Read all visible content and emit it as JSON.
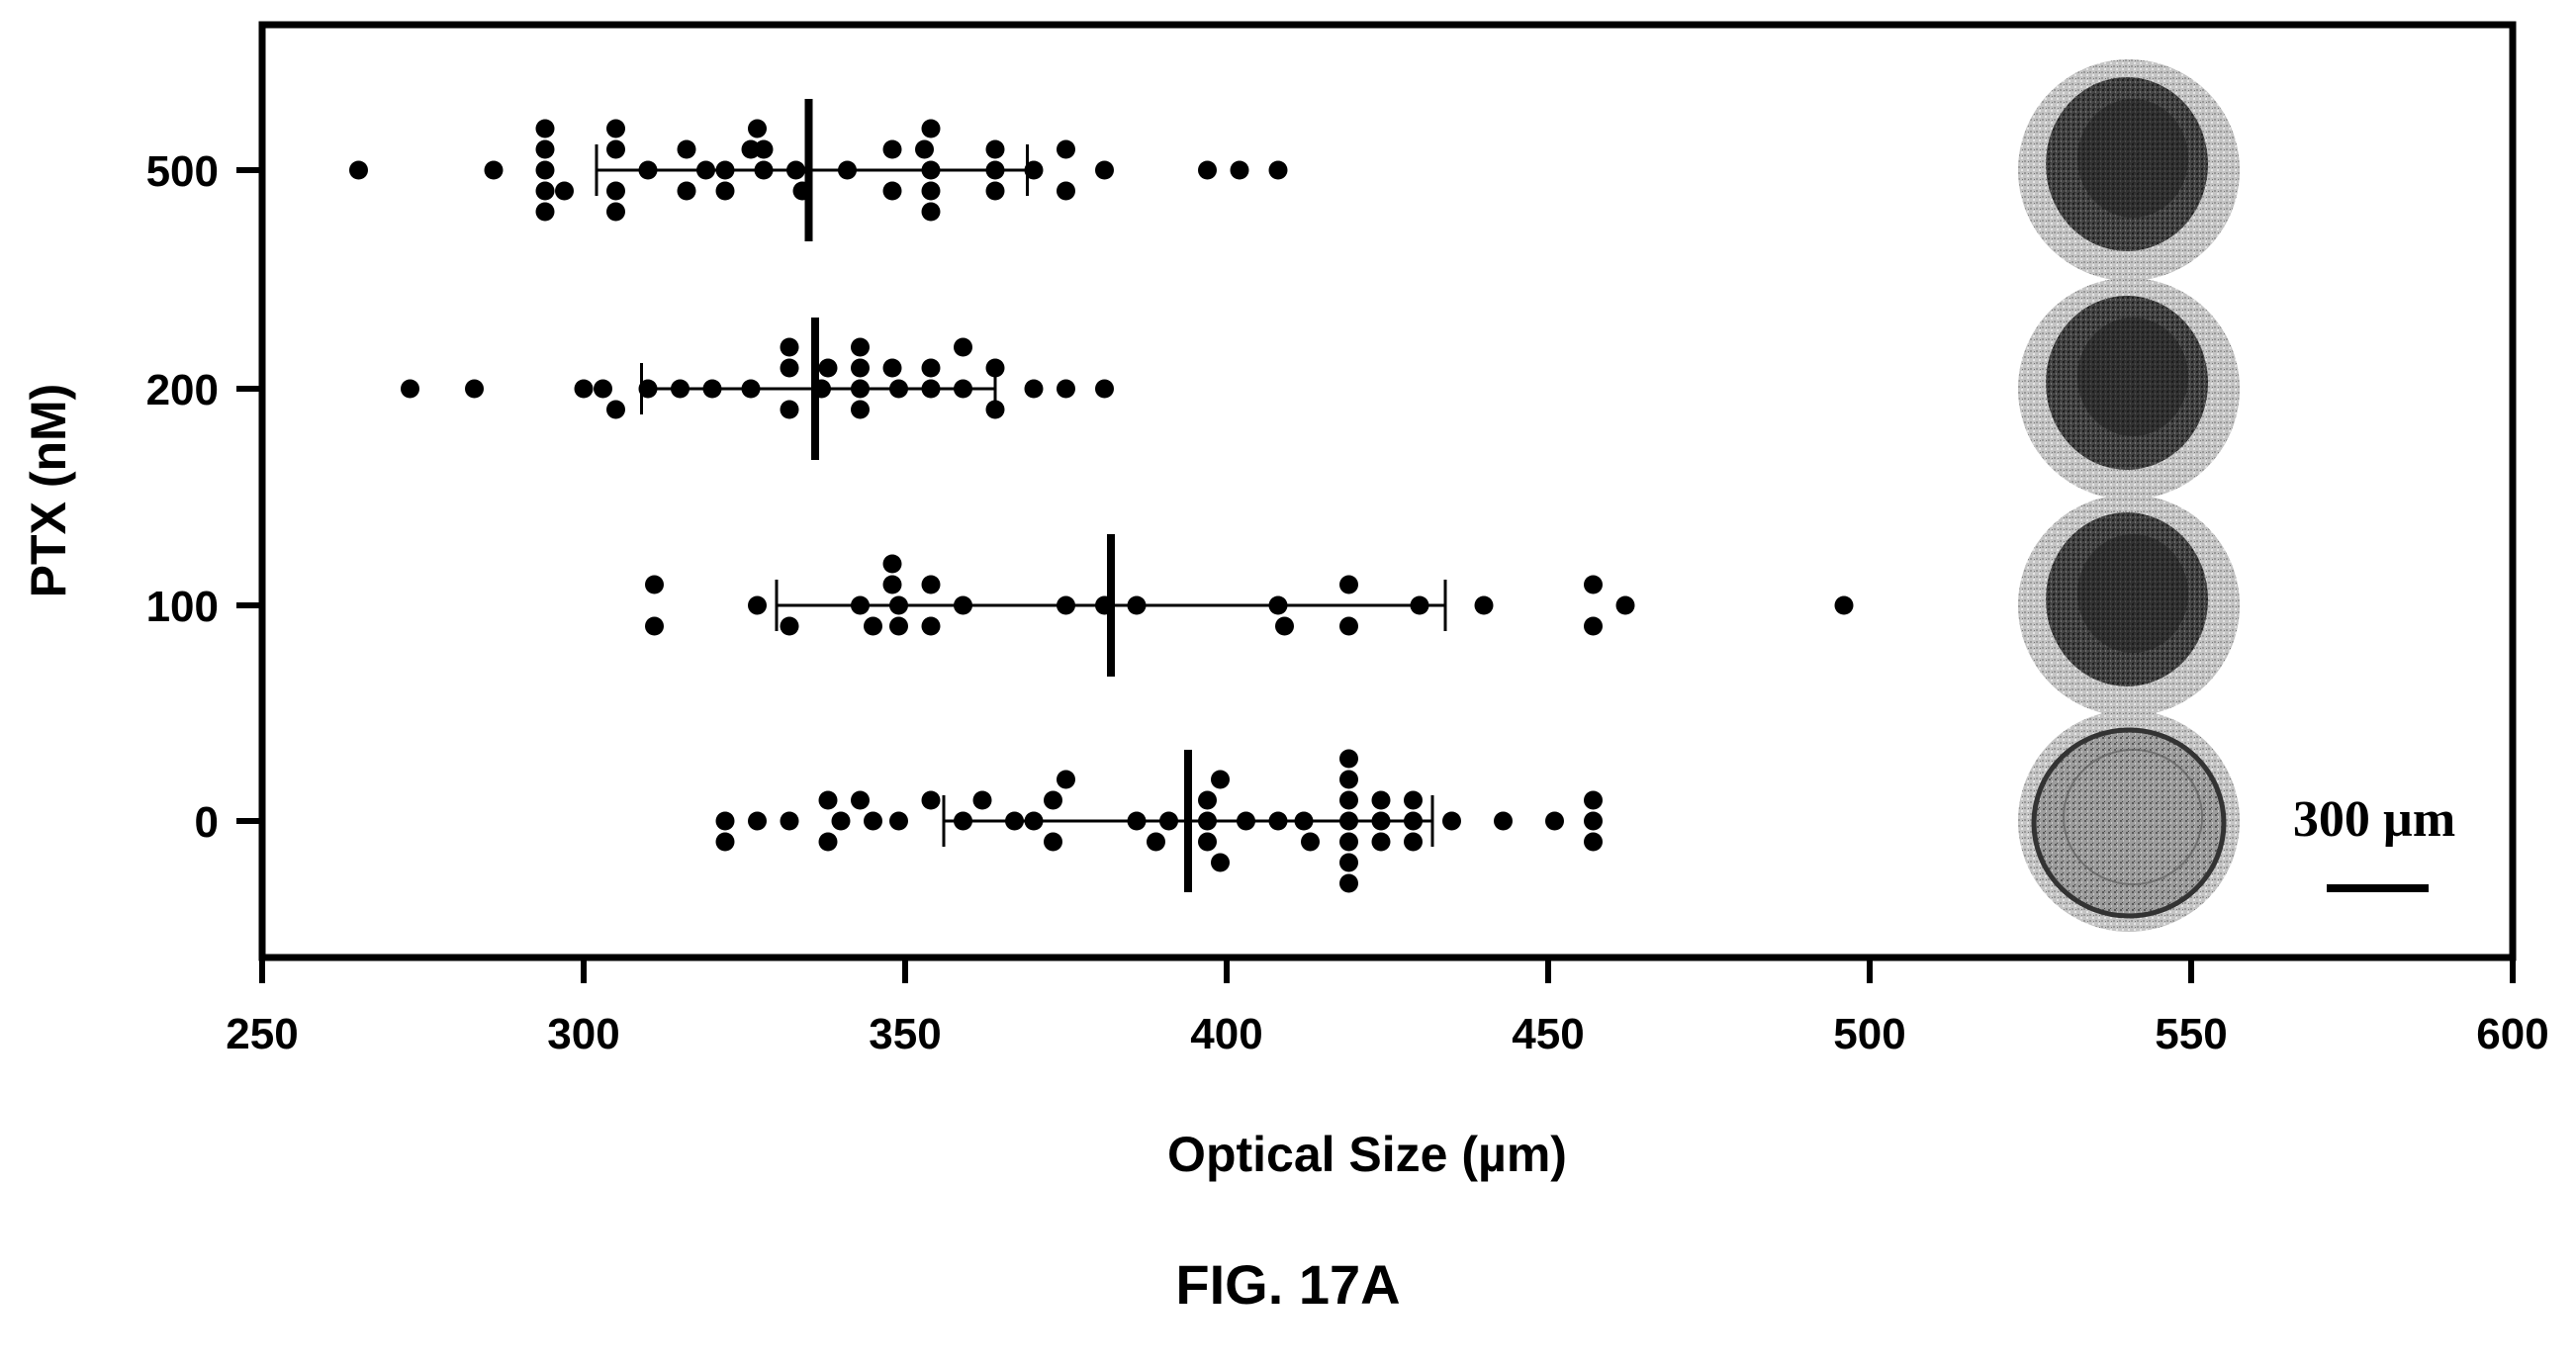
{
  "chart_data": {
    "type": "scatter",
    "subtype": "horizontal dot plot with mean and range bars",
    "xlabel": "Optical Size (µm)",
    "ylabel": "PTX (nM)",
    "xlim": [
      250,
      600
    ],
    "x_ticks": [
      "250",
      "300",
      "350",
      "400",
      "450",
      "500",
      "550",
      "600"
    ],
    "categories": [
      "0",
      "100",
      "200",
      "500"
    ],
    "grid": false,
    "legend": "none",
    "colors": {
      "points": "#000000",
      "axes": "#000000",
      "spheroid_outer": "#c9c9c9",
      "spheroid_core": "#2e2e2e",
      "spheroid_light": "#8a8a8a"
    },
    "series": [
      {
        "category": "500",
        "summary": {
          "mean": 335,
          "low": 302,
          "high": 369
        },
        "points": [
          {
            "x": 265,
            "offset": 0
          },
          {
            "x": 286,
            "offset": 0
          },
          {
            "x": 294,
            "offset": 2
          },
          {
            "x": 294,
            "offset": 1
          },
          {
            "x": 294,
            "offset": 0
          },
          {
            "x": 294,
            "offset": -1
          },
          {
            "x": 294,
            "offset": -2
          },
          {
            "x": 297,
            "offset": -1
          },
          {
            "x": 305,
            "offset": 2
          },
          {
            "x": 305,
            "offset": 1
          },
          {
            "x": 305,
            "offset": -1
          },
          {
            "x": 305,
            "offset": -2
          },
          {
            "x": 310,
            "offset": 0
          },
          {
            "x": 316,
            "offset": 1
          },
          {
            "x": 316,
            "offset": -1
          },
          {
            "x": 319,
            "offset": 0
          },
          {
            "x": 322,
            "offset": 0
          },
          {
            "x": 322,
            "offset": -1
          },
          {
            "x": 326,
            "offset": 1
          },
          {
            "x": 327,
            "offset": 2
          },
          {
            "x": 328,
            "offset": 1
          },
          {
            "x": 328,
            "offset": 0
          },
          {
            "x": 333,
            "offset": 0
          },
          {
            "x": 334,
            "offset": -1
          },
          {
            "x": 341,
            "offset": 0
          },
          {
            "x": 348,
            "offset": 1
          },
          {
            "x": 348,
            "offset": -1
          },
          {
            "x": 353,
            "offset": 1
          },
          {
            "x": 354,
            "offset": 2
          },
          {
            "x": 354,
            "offset": 0
          },
          {
            "x": 354,
            "offset": -1
          },
          {
            "x": 354,
            "offset": -2
          },
          {
            "x": 364,
            "offset": 1
          },
          {
            "x": 364,
            "offset": 0
          },
          {
            "x": 364,
            "offset": -1
          },
          {
            "x": 370,
            "offset": 0
          },
          {
            "x": 375,
            "offset": 1
          },
          {
            "x": 375,
            "offset": -1
          },
          {
            "x": 381,
            "offset": 0
          },
          {
            "x": 397,
            "offset": 0
          },
          {
            "x": 402,
            "offset": 0
          },
          {
            "x": 408,
            "offset": 0
          }
        ]
      },
      {
        "category": "200",
        "summary": {
          "mean": 336,
          "low": 309,
          "high": 364
        },
        "points": [
          {
            "x": 273,
            "offset": 0
          },
          {
            "x": 283,
            "offset": 0
          },
          {
            "x": 300,
            "offset": 0
          },
          {
            "x": 303,
            "offset": 0
          },
          {
            "x": 305,
            "offset": -1
          },
          {
            "x": 310,
            "offset": 0
          },
          {
            "x": 315,
            "offset": 0
          },
          {
            "x": 320,
            "offset": 0
          },
          {
            "x": 326,
            "offset": 0
          },
          {
            "x": 332,
            "offset": 2
          },
          {
            "x": 332,
            "offset": 1
          },
          {
            "x": 332,
            "offset": -1
          },
          {
            "x": 337,
            "offset": 0
          },
          {
            "x": 338,
            "offset": 1
          },
          {
            "x": 343,
            "offset": 2
          },
          {
            "x": 343,
            "offset": 1
          },
          {
            "x": 343,
            "offset": 0
          },
          {
            "x": 343,
            "offset": -1
          },
          {
            "x": 348,
            "offset": 1
          },
          {
            "x": 349,
            "offset": 0
          },
          {
            "x": 354,
            "offset": 0
          },
          {
            "x": 354,
            "offset": 1
          },
          {
            "x": 359,
            "offset": 2
          },
          {
            "x": 359,
            "offset": 0
          },
          {
            "x": 364,
            "offset": 1
          },
          {
            "x": 364,
            "offset": -1
          },
          {
            "x": 370,
            "offset": 0
          },
          {
            "x": 375,
            "offset": 0
          },
          {
            "x": 381,
            "offset": 0
          }
        ]
      },
      {
        "category": "100",
        "summary": {
          "mean": 382,
          "low": 330,
          "high": 434
        },
        "points": [
          {
            "x": 311,
            "offset": 1
          },
          {
            "x": 311,
            "offset": -1
          },
          {
            "x": 327,
            "offset": 0
          },
          {
            "x": 332,
            "offset": -1
          },
          {
            "x": 343,
            "offset": 0
          },
          {
            "x": 345,
            "offset": -1
          },
          {
            "x": 348,
            "offset": 2
          },
          {
            "x": 348,
            "offset": 1
          },
          {
            "x": 349,
            "offset": 0
          },
          {
            "x": 349,
            "offset": -1
          },
          {
            "x": 354,
            "offset": 1
          },
          {
            "x": 354,
            "offset": -1
          },
          {
            "x": 359,
            "offset": 0
          },
          {
            "x": 375,
            "offset": 0
          },
          {
            "x": 381,
            "offset": 0
          },
          {
            "x": 386,
            "offset": 0
          },
          {
            "x": 408,
            "offset": 0
          },
          {
            "x": 409,
            "offset": -1
          },
          {
            "x": 419,
            "offset": 1
          },
          {
            "x": 419,
            "offset": -1
          },
          {
            "x": 430,
            "offset": 0
          },
          {
            "x": 440,
            "offset": 0
          },
          {
            "x": 457,
            "offset": 1
          },
          {
            "x": 457,
            "offset": -1
          },
          {
            "x": 462,
            "offset": 0
          },
          {
            "x": 496,
            "offset": 0
          }
        ]
      },
      {
        "category": "0",
        "summary": {
          "mean": 394,
          "low": 356,
          "high": 432
        },
        "points": [
          {
            "x": 322,
            "offset": 0
          },
          {
            "x": 322,
            "offset": -1
          },
          {
            "x": 327,
            "offset": 0
          },
          {
            "x": 332,
            "offset": 0
          },
          {
            "x": 338,
            "offset": 1
          },
          {
            "x": 338,
            "offset": -1
          },
          {
            "x": 340,
            "offset": 0
          },
          {
            "x": 343,
            "offset": 1
          },
          {
            "x": 345,
            "offset": 0
          },
          {
            "x": 349,
            "offset": 0
          },
          {
            "x": 354,
            "offset": 1
          },
          {
            "x": 359,
            "offset": 0
          },
          {
            "x": 362,
            "offset": 1
          },
          {
            "x": 367,
            "offset": 0
          },
          {
            "x": 370,
            "offset": 0
          },
          {
            "x": 373,
            "offset": 1
          },
          {
            "x": 373,
            "offset": -1
          },
          {
            "x": 375,
            "offset": 2
          },
          {
            "x": 386,
            "offset": 0
          },
          {
            "x": 389,
            "offset": -1
          },
          {
            "x": 391,
            "offset": 0
          },
          {
            "x": 397,
            "offset": 1
          },
          {
            "x": 397,
            "offset": 0
          },
          {
            "x": 397,
            "offset": -1
          },
          {
            "x": 399,
            "offset": 2
          },
          {
            "x": 399,
            "offset": -2
          },
          {
            "x": 403,
            "offset": 0
          },
          {
            "x": 408,
            "offset": 0
          },
          {
            "x": 412,
            "offset": 0
          },
          {
            "x": 413,
            "offset": -1
          },
          {
            "x": 419,
            "offset": 3
          },
          {
            "x": 419,
            "offset": 2
          },
          {
            "x": 419,
            "offset": 1
          },
          {
            "x": 419,
            "offset": 0
          },
          {
            "x": 419,
            "offset": -1
          },
          {
            "x": 419,
            "offset": -2
          },
          {
            "x": 419,
            "offset": -3
          },
          {
            "x": 424,
            "offset": 1
          },
          {
            "x": 424,
            "offset": 0
          },
          {
            "x": 424,
            "offset": -1
          },
          {
            "x": 429,
            "offset": 1
          },
          {
            "x": 429,
            "offset": 0
          },
          {
            "x": 429,
            "offset": -1
          },
          {
            "x": 435,
            "offset": 0
          },
          {
            "x": 443,
            "offset": 0
          },
          {
            "x": 451,
            "offset": 0
          },
          {
            "x": 457,
            "offset": 1
          },
          {
            "x": 457,
            "offset": 0
          },
          {
            "x": 457,
            "offset": -1
          }
        ]
      }
    ],
    "insets": [
      {
        "category": "500",
        "name": "spheroid-image",
        "kind": "dense"
      },
      {
        "category": "200",
        "name": "spheroid-image",
        "kind": "dense"
      },
      {
        "category": "100",
        "name": "spheroid-image",
        "kind": "dense"
      },
      {
        "category": "0",
        "name": "spheroid-image",
        "kind": "light"
      }
    ],
    "scale_bar": {
      "label": "300 µm"
    },
    "caption": "FIG. 17A"
  }
}
